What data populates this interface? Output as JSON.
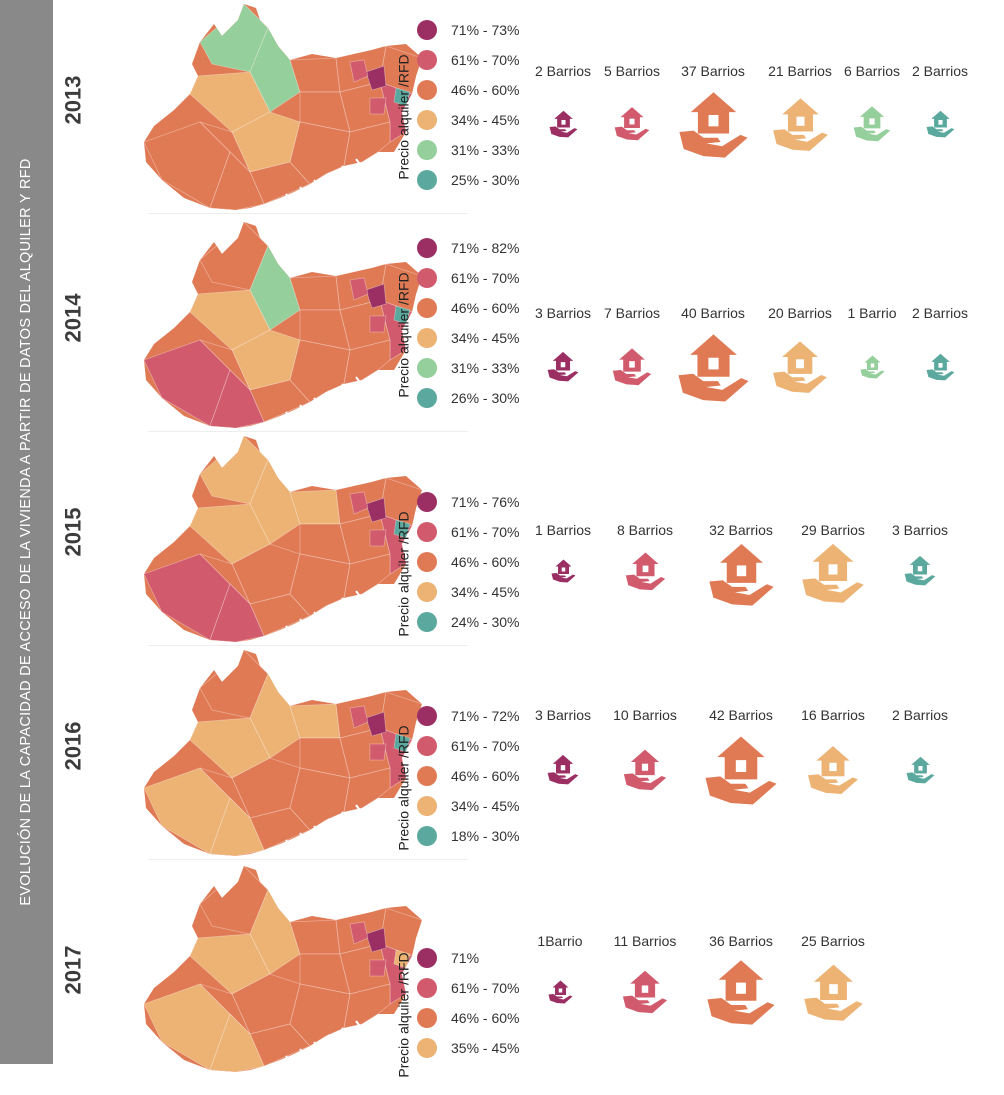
{
  "side_title": "EVOLUCIÓN DE LA CAPACIDAD DE ACCESO DE LA VIVIENDA A PARTIR DE DATOS DEL ALQUILER Y RFD",
  "legend_axis_label": "Precio alquiler /RFD",
  "colors": {
    "c71": "#9b2f63",
    "c61": "#d15a6d",
    "c46": "#e07a55",
    "c34": "#ecb374",
    "c31": "#95cf9b",
    "c25": "#5ba99e",
    "outline": "#ffffff"
  },
  "map_coloring": [
    "Barcelona neighbourhoods colored by rent/income ratio class"
  ],
  "years": [
    {
      "year": "2013",
      "legend": [
        {
          "label": "71% - 73%",
          "color": "#9b2f63"
        },
        {
          "label": "61% - 70%",
          "color": "#d15a6d"
        },
        {
          "label": "46% - 60%",
          "color": "#e07a55"
        },
        {
          "label": "34% - 45%",
          "color": "#ecb374"
        },
        {
          "label": "31% - 33%",
          "color": "#95cf9b"
        },
        {
          "label": "25% - 30%",
          "color": "#5ba99e"
        }
      ],
      "barrios": [
        {
          "label": "2 Barrios",
          "count": 2,
          "color": "#9b2f63"
        },
        {
          "label": "5 Barrios",
          "count": 5,
          "color": "#d15a6d"
        },
        {
          "label": "37 Barrios",
          "count": 37,
          "color": "#e07a55"
        },
        {
          "label": "21 Barrios",
          "count": 21,
          "color": "#ecb374"
        },
        {
          "label": "6 Barrios",
          "count": 6,
          "color": "#95cf9b"
        },
        {
          "label": "2 Barrios",
          "count": 2,
          "color": "#5ba99e"
        }
      ]
    },
    {
      "year": "2014",
      "legend": [
        {
          "label": "71% - 82%",
          "color": "#9b2f63"
        },
        {
          "label": "61% - 70%",
          "color": "#d15a6d"
        },
        {
          "label": "46% - 60%",
          "color": "#e07a55"
        },
        {
          "label": "34% - 45%",
          "color": "#ecb374"
        },
        {
          "label": "31% - 33%",
          "color": "#95cf9b"
        },
        {
          "label": "26% - 30%",
          "color": "#5ba99e"
        }
      ],
      "barrios": [
        {
          "label": "3 Barrios",
          "count": 3,
          "color": "#9b2f63"
        },
        {
          "label": "7 Barrios",
          "count": 7,
          "color": "#d15a6d"
        },
        {
          "label": "40 Barrios",
          "count": 40,
          "color": "#e07a55"
        },
        {
          "label": "20 Barrios",
          "count": 20,
          "color": "#ecb374"
        },
        {
          "label": "1 Barrio",
          "count": 1,
          "color": "#95cf9b"
        },
        {
          "label": "2 Barrios",
          "count": 2,
          "color": "#5ba99e"
        }
      ]
    },
    {
      "year": "2015",
      "legend": [
        {
          "label": "71% - 76%",
          "color": "#9b2f63"
        },
        {
          "label": "61% - 70%",
          "color": "#d15a6d"
        },
        {
          "label": "46% - 60%",
          "color": "#e07a55"
        },
        {
          "label": "34% - 45%",
          "color": "#ecb374"
        },
        {
          "label": "24% - 30%",
          "color": "#5ba99e"
        }
      ],
      "barrios": [
        {
          "label": "1 Barrios",
          "count": 1,
          "color": "#9b2f63"
        },
        {
          "label": "8 Barrios",
          "count": 8,
          "color": "#d15a6d"
        },
        {
          "label": "32 Barrios",
          "count": 32,
          "color": "#e07a55"
        },
        {
          "label": "29 Barrios",
          "count": 29,
          "color": "#ecb374"
        },
        {
          "label": "3 Barrios",
          "count": 3,
          "color": "#5ba99e"
        }
      ]
    },
    {
      "year": "2016",
      "legend": [
        {
          "label": "71% - 72%",
          "color": "#9b2f63"
        },
        {
          "label": "61% - 70%",
          "color": "#d15a6d"
        },
        {
          "label": "46% - 60%",
          "color": "#e07a55"
        },
        {
          "label": "34% - 45%",
          "color": "#ecb374"
        },
        {
          "label": "18% - 30%",
          "color": "#5ba99e"
        }
      ],
      "barrios": [
        {
          "label": "3 Barrios",
          "count": 3,
          "color": "#9b2f63"
        },
        {
          "label": "10 Barrios",
          "count": 10,
          "color": "#d15a6d"
        },
        {
          "label": "42 Barrios",
          "count": 42,
          "color": "#e07a55"
        },
        {
          "label": "16 Barrios",
          "count": 16,
          "color": "#ecb374"
        },
        {
          "label": "2 Barrios",
          "count": 2,
          "color": "#5ba99e"
        }
      ]
    },
    {
      "year": "2017",
      "legend": [
        {
          "label": "71%",
          "color": "#9b2f63"
        },
        {
          "label": "61% - 70%",
          "color": "#d15a6d"
        },
        {
          "label": "46% - 60%",
          "color": "#e07a55"
        },
        {
          "label": "35% - 45%",
          "color": "#ecb374"
        }
      ],
      "barrios": [
        {
          "label": "1Barrio",
          "count": 1,
          "color": "#9b2f63"
        },
        {
          "label": "11 Barrios",
          "count": 11,
          "color": "#d15a6d"
        },
        {
          "label": "36 Barrios",
          "count": 36,
          "color": "#e07a55"
        },
        {
          "label": "25 Barrios",
          "count": 25,
          "color": "#ecb374"
        }
      ]
    }
  ]
}
